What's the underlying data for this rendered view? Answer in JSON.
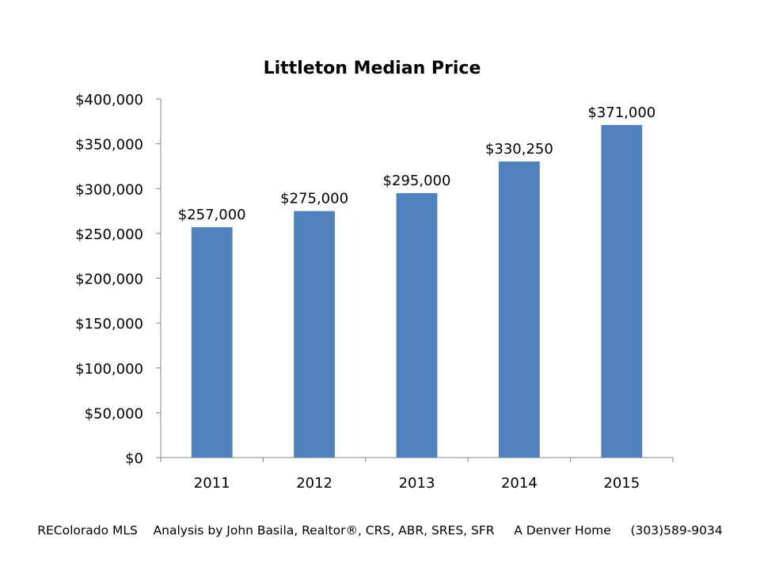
{
  "chart_data": {
    "type": "bar",
    "title": "Littleton Median Price",
    "categories": [
      "2011",
      "2012",
      "2013",
      "2014",
      "2015"
    ],
    "values": [
      257000,
      275000,
      295000,
      330250,
      371000
    ],
    "data_labels": [
      "$257,000",
      "$275,000",
      "$295,000",
      "$330,250",
      "$371,000"
    ],
    "y_ticks": [
      0,
      50000,
      100000,
      150000,
      200000,
      250000,
      300000,
      350000,
      400000
    ],
    "y_tick_labels": [
      "$0",
      "$50,000",
      "$100,000",
      "$150,000",
      "$200,000",
      "$250,000",
      "$300,000",
      "$350,000",
      "$400,000"
    ],
    "xlabel": "",
    "ylabel": "",
    "ylim": [
      0,
      400000
    ],
    "grid": false,
    "legend": "none",
    "bar_color": "#4F81BD",
    "axis_color": "#868686"
  },
  "footer": {
    "text": "REColorado MLS    Analysis by John Basila, Realtor®, CRS, ABR, SRES, SFR     A Denver Home     (303)589-9034"
  }
}
